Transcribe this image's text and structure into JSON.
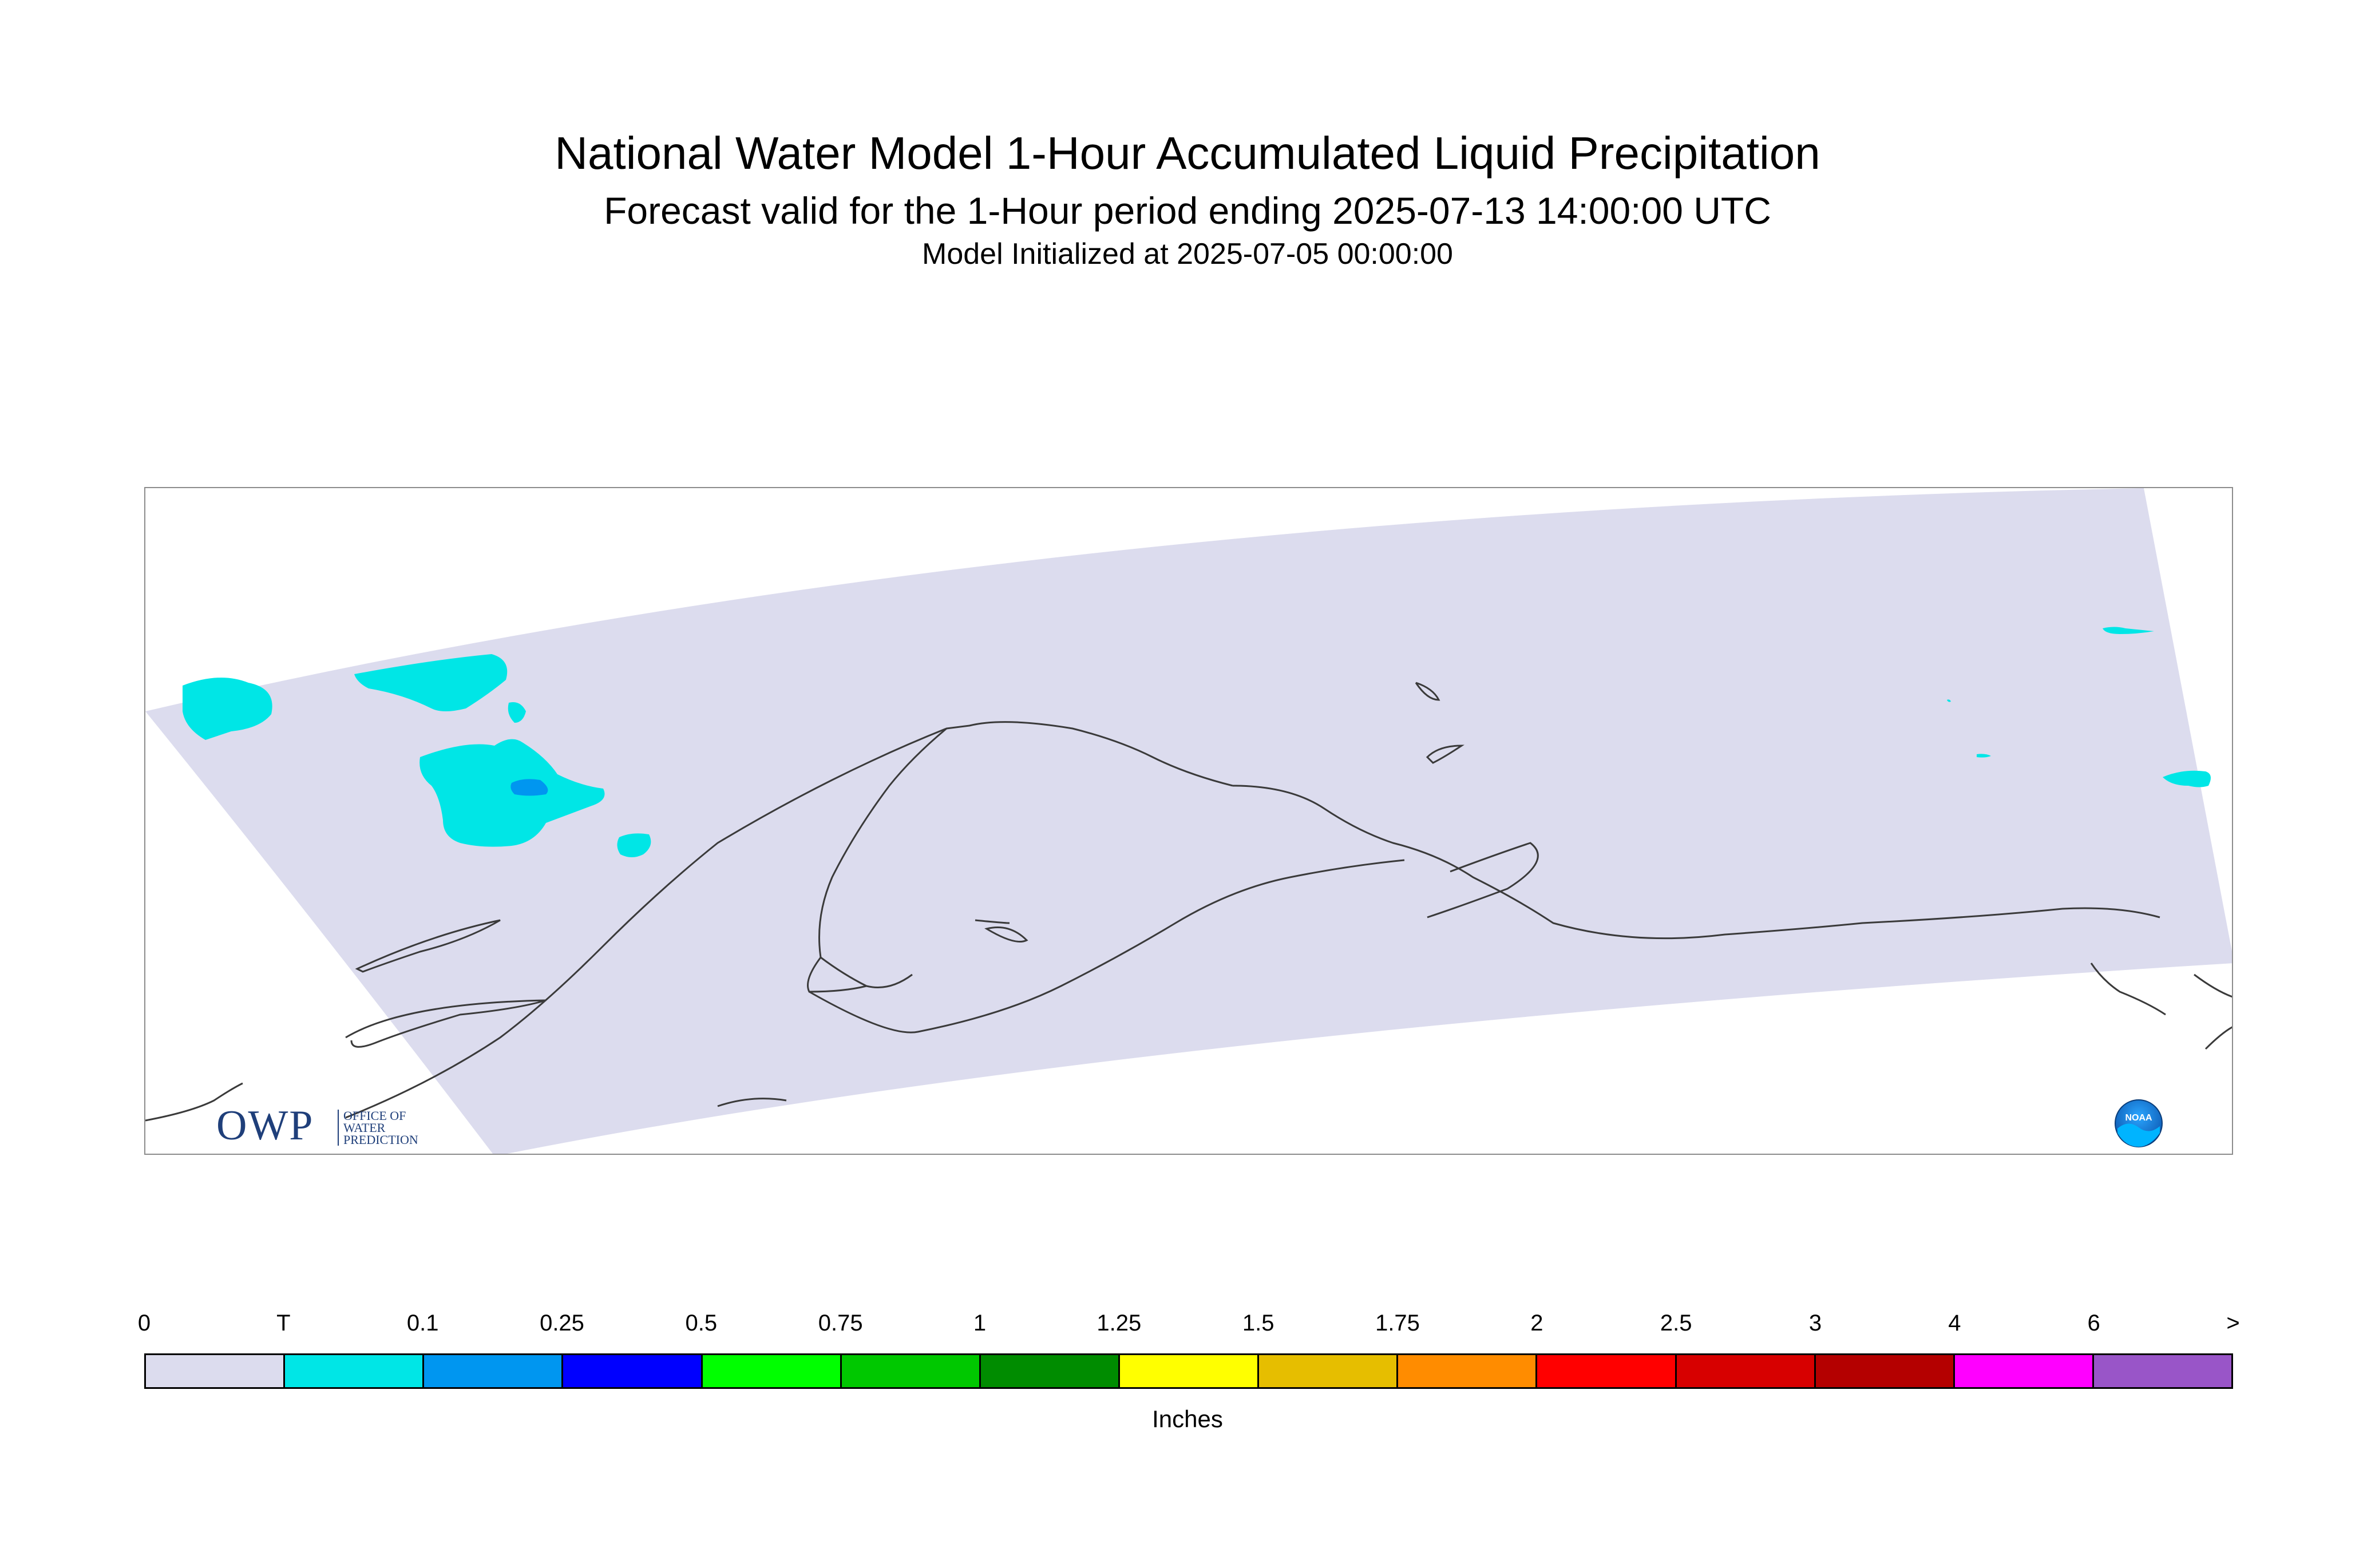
{
  "title": "National Water Model 1-Hour Accumulated Liquid Precipitation",
  "subtitle": "Forecast valid for the 1-Hour period ending 2025-07-13 14:00:00 UTC",
  "init_line": "Model Initialized at 2025-07-05 00:00:00",
  "logos": {
    "owp_mark": "OWP",
    "owp_text_line1": "OFFICE OF",
    "owp_text_line2": "WATER",
    "owp_text_line3": "PREDICTION",
    "noaa_text": "NOAA"
  },
  "map": {
    "domain_fill": "#dcdcee",
    "coast_color": "#3a3a3a",
    "precip_classes_present": [
      "T",
      "0.1"
    ]
  },
  "colorbar": {
    "units": "Inches",
    "labels": [
      "0",
      "T",
      "0.1",
      "0.25",
      "0.5",
      "0.75",
      "1",
      "1.25",
      "1.5",
      "1.75",
      "2",
      "2.5",
      "3",
      "4",
      "6",
      ">"
    ],
    "colors": [
      "#dcdcee",
      "#00e6e6",
      "#0096f0",
      "#0000ff",
      "#00ff00",
      "#00c800",
      "#008c00",
      "#ffff00",
      "#e6be00",
      "#ff8c00",
      "#ff0000",
      "#d70000",
      "#b40000",
      "#ff00ff",
      "#9955c8"
    ]
  }
}
